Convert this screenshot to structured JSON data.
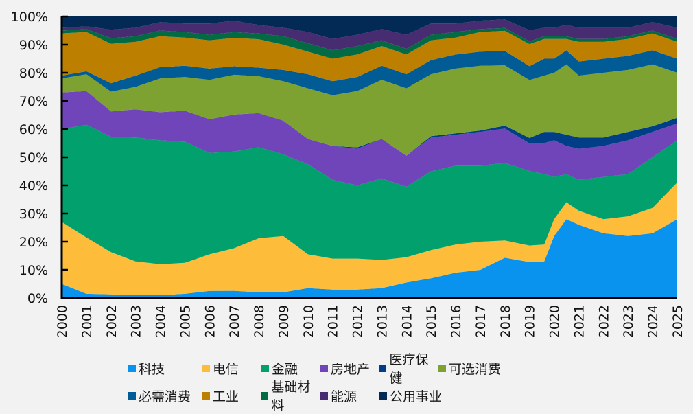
{
  "chart_data": {
    "type": "area",
    "stacked": true,
    "normalized": true,
    "title": "",
    "xlabel": "",
    "ylabel": "",
    "ylim": [
      0,
      100
    ],
    "y_ticks": [
      "0%",
      "10%",
      "20%",
      "30%",
      "40%",
      "50%",
      "60%",
      "70%",
      "80%",
      "90%",
      "100%"
    ],
    "x_ticks": [
      "2000",
      "2001",
      "2002",
      "2003",
      "2004",
      "2005",
      "2006",
      "2007",
      "2008",
      "2009",
      "2010",
      "2011",
      "2012",
      "2013",
      "2014",
      "2015",
      "2016",
      "2017",
      "2018",
      "2019",
      "2020",
      "2021",
      "2022",
      "2023",
      "2024",
      "2025"
    ],
    "x": [
      2000,
      2001,
      2002,
      2003,
      2004,
      2005,
      2006,
      2007,
      2008,
      2009,
      2010,
      2011,
      2012,
      2013,
      2014,
      2015,
      2016,
      2017,
      2018,
      2019,
      2019.6,
      2020,
      2020.5,
      2021,
      2022,
      2023,
      2024,
      2025
    ],
    "series": [
      {
        "name": "科技",
        "color": "#0a93ee",
        "values": [
          5,
          1.5,
          1.3,
          1,
          1,
          1.5,
          2.5,
          2.5,
          2,
          2,
          3.5,
          3,
          3,
          3.5,
          5.5,
          7,
          9,
          10,
          14,
          13,
          13,
          22,
          28,
          26,
          23,
          22,
          23,
          28
        ]
      },
      {
        "name": "电信",
        "color": "#fdbd3b",
        "values": [
          22,
          20,
          15,
          12,
          11,
          11,
          13,
          15,
          19,
          20,
          12,
          11,
          11,
          10,
          9,
          10,
          10,
          10,
          6,
          6,
          6,
          6,
          6,
          5,
          5,
          7,
          9,
          13
        ]
      },
      {
        "name": "金融",
        "color": "#02a06c",
        "values": [
          33,
          40,
          41,
          44,
          44,
          43,
          36,
          34,
          32,
          29,
          32,
          28,
          26,
          29,
          25,
          28,
          28,
          27,
          27,
          27,
          25,
          15,
          10,
          11,
          15,
          15,
          18,
          15
        ]
      },
      {
        "name": "房地产",
        "color": "#6f45b9",
        "values": [
          13,
          12,
          9,
          10,
          10,
          11,
          12,
          13,
          12,
          12,
          9,
          12,
          13,
          14,
          11,
          12,
          11,
          12,
          12,
          10,
          11,
          13,
          10,
          11,
          11,
          12,
          9,
          6
        ]
      },
      {
        "name": "医疗保健",
        "color": "#003f88",
        "values": [
          0,
          0,
          0,
          0,
          0,
          0,
          0,
          0,
          0,
          0,
          0,
          0,
          0.5,
          0,
          0,
          0.5,
          0.5,
          0.5,
          1,
          2,
          4,
          3,
          4,
          4,
          3,
          3,
          2,
          2
        ]
      },
      {
        "name": "可选消费",
        "color": "#7ea232",
        "values": [
          5,
          6,
          7,
          8,
          12,
          12,
          14,
          14,
          13,
          14,
          18,
          18,
          20,
          21,
          24,
          22,
          23,
          23,
          21,
          21,
          20,
          21,
          25,
          22,
          23,
          22,
          22,
          16
        ]
      },
      {
        "name": "必需消费",
        "color": "#015b95",
        "values": [
          1,
          1,
          3,
          4,
          4,
          4,
          4,
          3,
          3,
          4,
          5,
          5,
          5,
          5,
          5,
          5,
          5,
          5,
          5,
          5,
          6,
          5,
          5,
          5,
          5,
          5,
          5,
          5
        ]
      },
      {
        "name": "工业",
        "color": "#bd7f00",
        "values": [
          15,
          14,
          14,
          12,
          11,
          10,
          10,
          10,
          10,
          9,
          8,
          8,
          8,
          7,
          7,
          7,
          6,
          7,
          7,
          8,
          7,
          7,
          4,
          7,
          6,
          6,
          6,
          6
        ]
      },
      {
        "name": "基础材料",
        "color": "#036b43",
        "values": [
          1,
          1,
          2,
          2,
          2,
          2,
          2,
          2,
          2,
          3,
          3,
          3,
          3,
          2,
          2,
          2,
          2,
          1,
          1,
          1,
          1,
          1,
          1,
          1,
          1,
          1,
          1,
          1
        ]
      },
      {
        "name": "能源",
        "color": "#472c72",
        "values": [
          1,
          1,
          3,
          3,
          3,
          3,
          4,
          4,
          3,
          3,
          4,
          4,
          4,
          4,
          5,
          4,
          3,
          3,
          3,
          4,
          3,
          3,
          4,
          4,
          4,
          3,
          3,
          4
        ]
      },
      {
        "name": "公用事业",
        "color": "#022a54",
        "values": [
          4,
          3.5,
          4.7,
          4,
          2,
          2.5,
          2.5,
          1.5,
          3,
          4,
          5.5,
          8,
          6.5,
          4.5,
          6.5,
          2.5,
          2.5,
          1.5,
          1,
          5,
          4,
          4,
          3,
          4,
          4,
          4,
          2,
          4
        ]
      }
    ],
    "legend": {
      "placement": "bottom",
      "rows": [
        [
          "科技",
          "电信",
          "金融",
          "房地产",
          "医疗保健",
          "可选消费"
        ],
        [
          "必需消费",
          "工业",
          "基础材料",
          "能源",
          "公用事业"
        ]
      ]
    },
    "grid": false
  }
}
